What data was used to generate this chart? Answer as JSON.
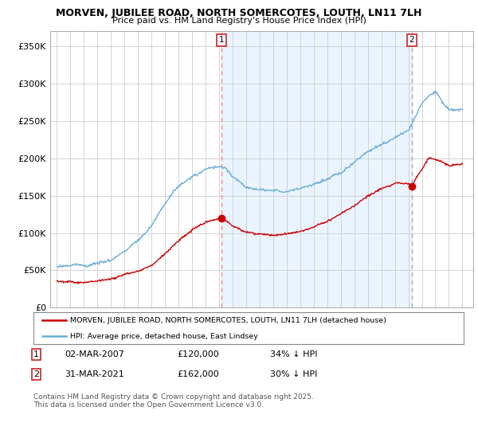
{
  "title": "MORVEN, JUBILEE ROAD, NORTH SOMERCOTES, LOUTH, LN11 7LH",
  "subtitle": "Price paid vs. HM Land Registry's House Price Index (HPI)",
  "ylabel_ticks": [
    "£0",
    "£50K",
    "£100K",
    "£150K",
    "£200K",
    "£250K",
    "£300K",
    "£350K"
  ],
  "ytick_vals": [
    0,
    50000,
    100000,
    150000,
    200000,
    250000,
    300000,
    350000
  ],
  "ylim": [
    0,
    370000
  ],
  "legend_line1": "MORVEN, JUBILEE ROAD, NORTH SOMERCOTES, LOUTH, LN11 7LH (detached house)",
  "legend_line2": "HPI: Average price, detached house, East Lindsey",
  "sale1_date": "02-MAR-2007",
  "sale1_price": "£120,000",
  "sale1_hpi": "34% ↓ HPI",
  "sale2_date": "31-MAR-2021",
  "sale2_price": "£162,000",
  "sale2_hpi": "30% ↓ HPI",
  "footer": "Contains HM Land Registry data © Crown copyright and database right 2025.\nThis data is licensed under the Open Government Licence v3.0.",
  "hpi_color": "#6aaed6",
  "hpi_fill_color": "#ddeeff",
  "price_color": "#cc0000",
  "vline1_color": "#ff8888",
  "vline2_color": "#aaaacc",
  "background_color": "#ffffff",
  "grid_color": "#cccccc",
  "sale1_x_year": 2007.17,
  "sale2_x_year": 2021.25,
  "xmin": 1994.5,
  "xmax": 2025.8
}
